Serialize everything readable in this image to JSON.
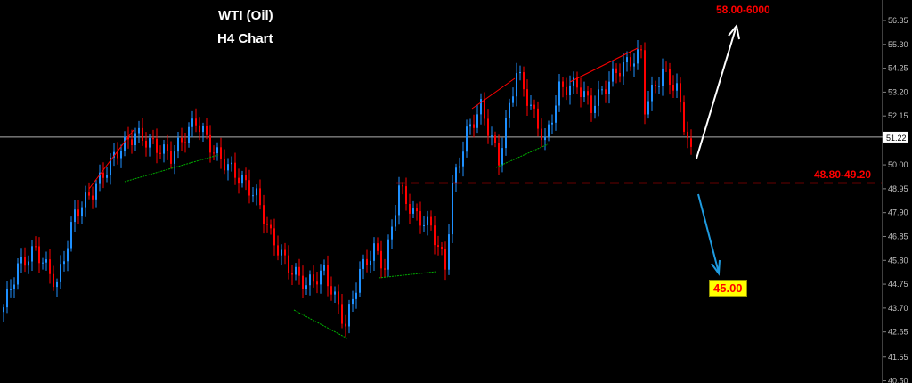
{
  "title": "WTI (Oil)",
  "subtitle": "H4 Chart",
  "chart_data": {
    "type": "candlestick",
    "ylim": [
      40.5,
      56.9
    ],
    "y_ticks": [
      "56.35",
      "55.30",
      "54.25",
      "53.20",
      "52.15",
      "50.00",
      "48.95",
      "47.90",
      "46.85",
      "45.80",
      "44.75",
      "43.70",
      "42.65",
      "41.55",
      "40.50"
    ],
    "y_tick_values": [
      56.35,
      55.3,
      54.25,
      53.2,
      52.15,
      50.0,
      48.95,
      47.9,
      46.85,
      45.8,
      44.75,
      43.7,
      42.65,
      41.55,
      40.5
    ],
    "current_price": "51.22",
    "current_price_value": 51.22,
    "price_path": [
      [
        0,
        43.73
      ],
      [
        4,
        45.5
      ],
      [
        9,
        46.28
      ],
      [
        15,
        44.71
      ],
      [
        20,
        47.85
      ],
      [
        25,
        48.83
      ],
      [
        32,
        50.59
      ],
      [
        37,
        51.37
      ],
      [
        41,
        50.98
      ],
      [
        47,
        50.39
      ],
      [
        54,
        51.96
      ],
      [
        59,
        50.59
      ],
      [
        65,
        49.61
      ],
      [
        71,
        48.63
      ],
      [
        75,
        46.87
      ],
      [
        80,
        45.5
      ],
      [
        85,
        44.71
      ],
      [
        90,
        45.3
      ],
      [
        96,
        42.95
      ],
      [
        100,
        45.3
      ],
      [
        104,
        46.28
      ],
      [
        107,
        45.5
      ],
      [
        111,
        49.02
      ],
      [
        115,
        47.85
      ],
      [
        120,
        47.26
      ],
      [
        124,
        45.5
      ],
      [
        126,
        49.02
      ],
      [
        130,
        51.37
      ],
      [
        134,
        52.55
      ],
      [
        139,
        50.2
      ],
      [
        144,
        54.12
      ],
      [
        147,
        52.94
      ],
      [
        152,
        50.98
      ],
      [
        156,
        53.33
      ],
      [
        161,
        53.53
      ],
      [
        165,
        52.55
      ],
      [
        172,
        54.12
      ],
      [
        179,
        54.9
      ],
      [
        180,
        52.55
      ],
      [
        185,
        54.12
      ],
      [
        189,
        53.33
      ],
      [
        191,
        51.77
      ],
      [
        193,
        50.79
      ]
    ],
    "colors": {
      "up": "#1e90ff",
      "down": "#ff0000",
      "background": "#000000",
      "axis_text": "#c0c0c0"
    },
    "grid": false,
    "resistance_zone": {
      "label": "48.80-49.20",
      "value": 49.2,
      "color": "#cc0000"
    },
    "target_up": {
      "label": "58.00-6000",
      "color": "#ffffff"
    },
    "target_down": {
      "label": "45.00",
      "value": 45.0,
      "color": "#1e9be0"
    }
  }
}
